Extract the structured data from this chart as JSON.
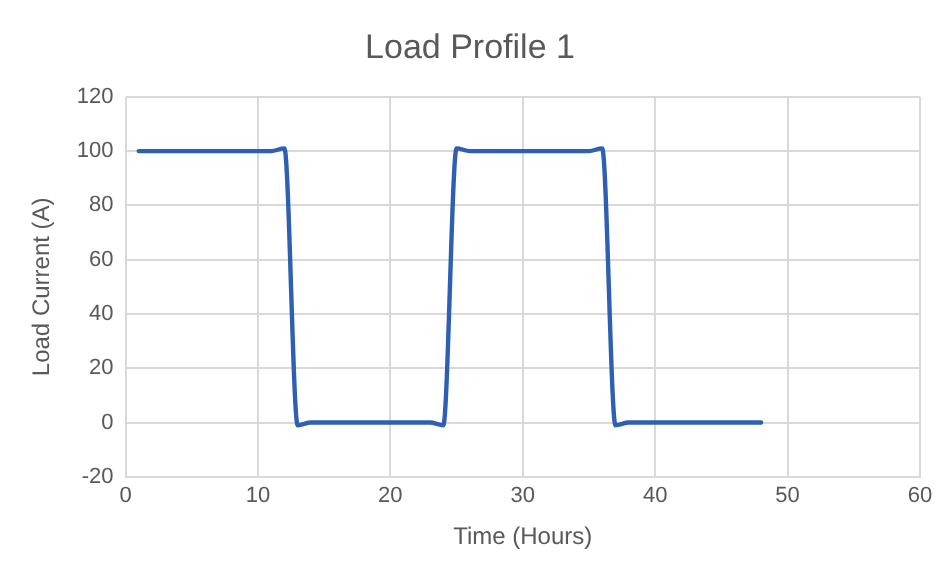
{
  "chart_data": {
    "type": "line",
    "title": "Load Profile 1",
    "xlabel": "Time (Hours)",
    "ylabel": "Load Current (A)",
    "series": [
      {
        "color": "#2f5fb3",
        "x": [
          1,
          11,
          12,
          13,
          14,
          23,
          24,
          25,
          26,
          35,
          36,
          37,
          38,
          48
        ],
        "values": [
          100,
          100,
          101,
          -1,
          0,
          0,
          -1,
          101,
          100,
          100,
          101,
          -1,
          0,
          0
        ]
      }
    ],
    "xlim": [
      0,
      60
    ],
    "xticks": [
      0,
      10,
      20,
      30,
      40,
      50,
      60
    ],
    "ylim": [
      -20,
      120
    ],
    "yticks": [
      -20,
      0,
      20,
      40,
      60,
      80,
      100,
      120
    ],
    "grid": true,
    "legend": false,
    "marker": "none",
    "line_style": "solid"
  }
}
